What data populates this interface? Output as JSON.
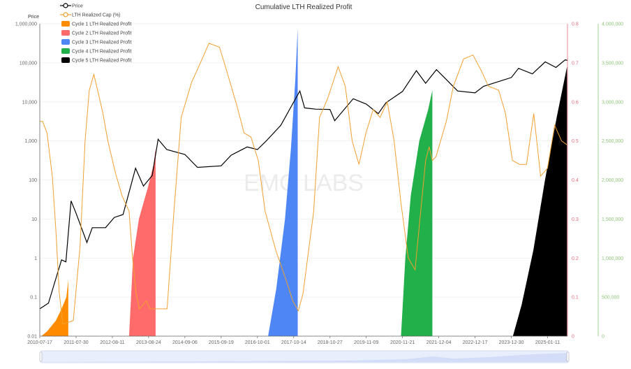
{
  "chart_data": {
    "type": "line",
    "title": "Cumulative LTH Realized Profit",
    "watermark": "EMC LABS",
    "y_left": {
      "label": "Price",
      "scale": "log",
      "range": [
        0.01,
        1000000
      ],
      "ticks": [
        "0.01",
        "0.1",
        "1",
        "10",
        "100",
        "1,000",
        "10,000",
        "100,000",
        "1,000,000"
      ]
    },
    "y_right_1": {
      "range": [
        0,
        0.8
      ],
      "ticks": [
        "0",
        "0.1",
        "0.2",
        "0.3",
        "0.4",
        "0.5",
        "0.6",
        "0.7",
        "0.8"
      ],
      "color": "#e06b7a"
    },
    "y_right_2": {
      "range": [
        0,
        4000000
      ],
      "ticks": [
        "0",
        "500,000",
        "1,000,000",
        "1,500,000",
        "2,000,000",
        "2,500,000",
        "3,000,000",
        "3,500,000",
        "4,000,000"
      ],
      "color": "#8cc47a"
    },
    "x_range": [
      "2010-07-17",
      "2025-08-06"
    ],
    "x_ticks": [
      "2010-07-17",
      "2011-07-30",
      "2012-08-11",
      "2013-08-24",
      "2014-09-06",
      "2015-09-19",
      "2016-10-01",
      "2017-10-14",
      "2018-10-27",
      "2019-11-09",
      "2020-11-21",
      "2021-12-04",
      "2022-12-17",
      "2023-12-30",
      "2025-01-11"
    ],
    "grid": true,
    "legend_placement": "top-left",
    "series": [
      {
        "name": "Price",
        "type": "line",
        "axis": "left",
        "color": "#000000",
        "points": [
          [
            "2010-07-17",
            0.05
          ],
          [
            "2010-10-15",
            0.07
          ],
          [
            "2011-01-01",
            0.3
          ],
          [
            "2011-03-01",
            0.9
          ],
          [
            "2011-04-15",
            0.8
          ],
          [
            "2011-06-08",
            29
          ],
          [
            "2011-07-30",
            14
          ],
          [
            "2011-11-20",
            2.5
          ],
          [
            "2012-01-15",
            6
          ],
          [
            "2012-06-01",
            6
          ],
          [
            "2012-09-01",
            11
          ],
          [
            "2012-12-01",
            13
          ],
          [
            "2013-04-10",
            200
          ],
          [
            "2013-07-01",
            70
          ],
          [
            "2013-10-01",
            130
          ],
          [
            "2013-12-01",
            1100
          ],
          [
            "2014-03-01",
            600
          ],
          [
            "2014-09-06",
            450
          ],
          [
            "2015-01-15",
            210
          ],
          [
            "2015-09-19",
            230
          ],
          [
            "2016-01-01",
            430
          ],
          [
            "2016-06-15",
            700
          ],
          [
            "2016-10-01",
            600
          ],
          [
            "2017-01-01",
            1000
          ],
          [
            "2017-06-01",
            2500
          ],
          [
            "2017-12-17",
            19000
          ],
          [
            "2018-02-05",
            7000
          ],
          [
            "2018-06-01",
            6500
          ],
          [
            "2018-10-27",
            6400
          ],
          [
            "2018-12-15",
            3300
          ],
          [
            "2019-06-26",
            12000
          ],
          [
            "2019-11-09",
            8800
          ],
          [
            "2020-03-13",
            5000
          ],
          [
            "2020-06-01",
            9500
          ],
          [
            "2020-11-21",
            18500
          ],
          [
            "2021-04-14",
            63000
          ],
          [
            "2021-07-20",
            30000
          ],
          [
            "2021-11-10",
            67000
          ],
          [
            "2022-06-18",
            19000
          ],
          [
            "2022-12-17",
            17000
          ],
          [
            "2023-03-15",
            25000
          ],
          [
            "2023-12-30",
            42000
          ],
          [
            "2024-03-14",
            72000
          ],
          [
            "2024-08-05",
            52000
          ],
          [
            "2024-12-17",
            106000
          ],
          [
            "2025-04-08",
            76000
          ],
          [
            "2025-07-14",
            120000
          ],
          [
            "2025-08-06",
            115000
          ]
        ]
      },
      {
        "name": "LTH Realized Cap (%)",
        "type": "line",
        "axis": "right_1",
        "color": "#f0a030",
        "points": [
          [
            "2010-07-17",
            0.55
          ],
          [
            "2010-08-15",
            0.55
          ],
          [
            "2010-10-01",
            0.52
          ],
          [
            "2010-11-24",
            0.41
          ],
          [
            "2011-01-01",
            0.27
          ],
          [
            "2011-02-05",
            0.11
          ],
          [
            "2011-03-15",
            0.03
          ],
          [
            "2011-07-01",
            0.04
          ],
          [
            "2011-09-10",
            0.23
          ],
          [
            "2011-11-01",
            0.5
          ],
          [
            "2011-12-15",
            0.63
          ],
          [
            "2012-02-01",
            0.67
          ],
          [
            "2012-03-10",
            0.63
          ],
          [
            "2012-05-05",
            0.57
          ],
          [
            "2012-06-25",
            0.5
          ],
          [
            "2012-09-10",
            0.42
          ],
          [
            "2012-11-20",
            0.36
          ],
          [
            "2013-02-01",
            0.32
          ],
          [
            "2013-03-10",
            0.2
          ],
          [
            "2013-04-15",
            0.11
          ],
          [
            "2013-05-20",
            0.07
          ],
          [
            "2013-08-01",
            0.09
          ],
          [
            "2013-09-05",
            0.07
          ],
          [
            "2013-11-15",
            0.07
          ],
          [
            "2014-03-05",
            0.07
          ],
          [
            "2014-05-15",
            0.32
          ],
          [
            "2014-07-30",
            0.56
          ],
          [
            "2014-11-15",
            0.65
          ],
          [
            "2015-03-05",
            0.71
          ],
          [
            "2015-05-15",
            0.75
          ],
          [
            "2015-09-01",
            0.74
          ],
          [
            "2015-11-15",
            0.68
          ],
          [
            "2016-03-01",
            0.59
          ],
          [
            "2016-05-15",
            0.52
          ],
          [
            "2016-07-25",
            0.51
          ],
          [
            "2016-10-10",
            0.45
          ],
          [
            "2016-12-20",
            0.32
          ],
          [
            "2017-04-10",
            0.22
          ],
          [
            "2017-07-25",
            0.145
          ],
          [
            "2017-10-05",
            0.09
          ],
          [
            "2017-12-01",
            0.065
          ],
          [
            "2018-01-20",
            0.11
          ],
          [
            "2018-05-10",
            0.32
          ],
          [
            "2018-07-10",
            0.56
          ],
          [
            "2018-10-05",
            0.61
          ],
          [
            "2019-01-20",
            0.69
          ],
          [
            "2019-04-05",
            0.64
          ],
          [
            "2019-06-15",
            0.5
          ],
          [
            "2019-08-25",
            0.44
          ],
          [
            "2019-11-05",
            0.52
          ],
          [
            "2020-01-20",
            0.58
          ],
          [
            "2020-04-01",
            0.56
          ],
          [
            "2020-06-15",
            0.6
          ],
          [
            "2020-08-25",
            0.5
          ],
          [
            "2020-11-05",
            0.34
          ],
          [
            "2021-01-20",
            0.2
          ],
          [
            "2021-04-01",
            0.17
          ],
          [
            "2021-05-10",
            0.27
          ],
          [
            "2021-07-20",
            0.45
          ],
          [
            "2021-08-25",
            0.485
          ],
          [
            "2021-09-28",
            0.45
          ],
          [
            "2021-11-05",
            0.46
          ],
          [
            "2022-02-20",
            0.55
          ],
          [
            "2022-05-05",
            0.64
          ],
          [
            "2022-08-20",
            0.71
          ],
          [
            "2022-11-25",
            0.72
          ],
          [
            "2023-02-20",
            0.68
          ],
          [
            "2023-05-05",
            0.64
          ],
          [
            "2023-08-20",
            0.63
          ],
          [
            "2023-10-30",
            0.57
          ],
          [
            "2024-01-10",
            0.45
          ],
          [
            "2024-03-25",
            0.44
          ],
          [
            "2024-06-05",
            0.44
          ],
          [
            "2024-08-20",
            0.57
          ],
          [
            "2024-10-30",
            0.41
          ],
          [
            "2025-01-10",
            0.43
          ],
          [
            "2025-03-25",
            0.54
          ],
          [
            "2025-06-05",
            0.5
          ],
          [
            "2025-08-01",
            0.49
          ]
        ]
      },
      {
        "name": "Cycle 1 LTH Realized Profit",
        "type": "area",
        "axis": "right_2",
        "color": "#ff8c00",
        "points": [
          [
            "2010-08-01",
            0
          ],
          [
            "2010-10-01",
            60000
          ],
          [
            "2011-01-01",
            200000
          ],
          [
            "2011-03-01",
            350000
          ],
          [
            "2011-04-20",
            500000
          ],
          [
            "2011-05-10",
            720000
          ]
        ]
      },
      {
        "name": "Cycle 2 LTH Realized Profit",
        "type": "area",
        "axis": "right_2",
        "color": "#ff6b6b",
        "points": [
          [
            "2013-02-01",
            0
          ],
          [
            "2013-03-15",
            1000000
          ],
          [
            "2013-05-15",
            1500000
          ],
          [
            "2013-08-15",
            1900000
          ],
          [
            "2013-10-15",
            2200000
          ],
          [
            "2013-11-05",
            2400000
          ]
        ]
      },
      {
        "name": "Cycle 3 LTH Realized Profit",
        "type": "area",
        "axis": "right_2",
        "color": "#4e86f5",
        "points": [
          [
            "2017-01-20",
            0
          ],
          [
            "2017-04-15",
            600000
          ],
          [
            "2017-07-15",
            1500000
          ],
          [
            "2017-09-15",
            2400000
          ],
          [
            "2017-11-01",
            3300000
          ],
          [
            "2017-11-25",
            3950000
          ]
        ]
      },
      {
        "name": "Cycle 4 LTH Realized Profit",
        "type": "area",
        "axis": "right_2",
        "color": "#22b04a",
        "points": [
          [
            "2020-11-05",
            0
          ],
          [
            "2020-12-20",
            1000000
          ],
          [
            "2021-02-15",
            1800000
          ],
          [
            "2021-05-15",
            2500000
          ],
          [
            "2021-08-15",
            2900000
          ],
          [
            "2021-09-28",
            3150000
          ]
        ]
      },
      {
        "name": "Cycle 5 LTH Realized Profit",
        "type": "area",
        "axis": "right_2",
        "color": "#000000",
        "points": [
          [
            "2024-01-15",
            0
          ],
          [
            "2024-04-15",
            400000
          ],
          [
            "2024-08-15",
            1100000
          ],
          [
            "2024-12-15",
            2000000
          ],
          [
            "2025-04-15",
            2800000
          ],
          [
            "2025-08-01",
            3450000
          ]
        ]
      }
    ]
  }
}
